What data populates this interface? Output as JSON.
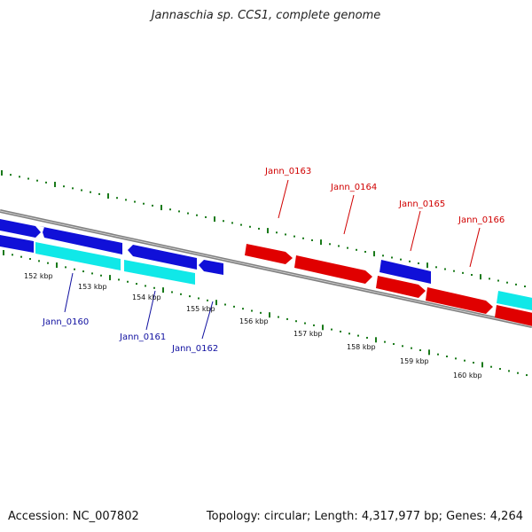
{
  "title": "Jannaschia sp. CCS1, complete genome",
  "footer": {
    "accession": "Accession: NC_007802",
    "summary": "Topology: circular; Length: 4,317,977 bp; Genes: 4,264"
  },
  "colors": {
    "backbone": "#808080",
    "tick": "#1a7a1a",
    "blue": "#1010d8",
    "cyan": "#10e8e8",
    "red": "#e00000",
    "label_blue": "#1010a0",
    "label_red": "#d00000"
  },
  "scale": {
    "unit_labels": [
      "152 kbp",
      "153 kbp",
      "154 kbp",
      "155 kbp",
      "156 kbp",
      "157 kbp",
      "158 kbp",
      "159 kbp",
      "160 kbp"
    ]
  },
  "gene_labels": [
    {
      "name": "Jann_0160",
      "color": "label_blue"
    },
    {
      "name": "Jann_0161",
      "color": "label_blue"
    },
    {
      "name": "Jann_0162",
      "color": "label_blue"
    },
    {
      "name": "Jann_0163",
      "color": "label_red"
    },
    {
      "name": "Jann_0164",
      "color": "label_red"
    },
    {
      "name": "Jann_0165",
      "color": "label_red"
    },
    {
      "name": "Jann_0166",
      "color": "label_red"
    }
  ]
}
